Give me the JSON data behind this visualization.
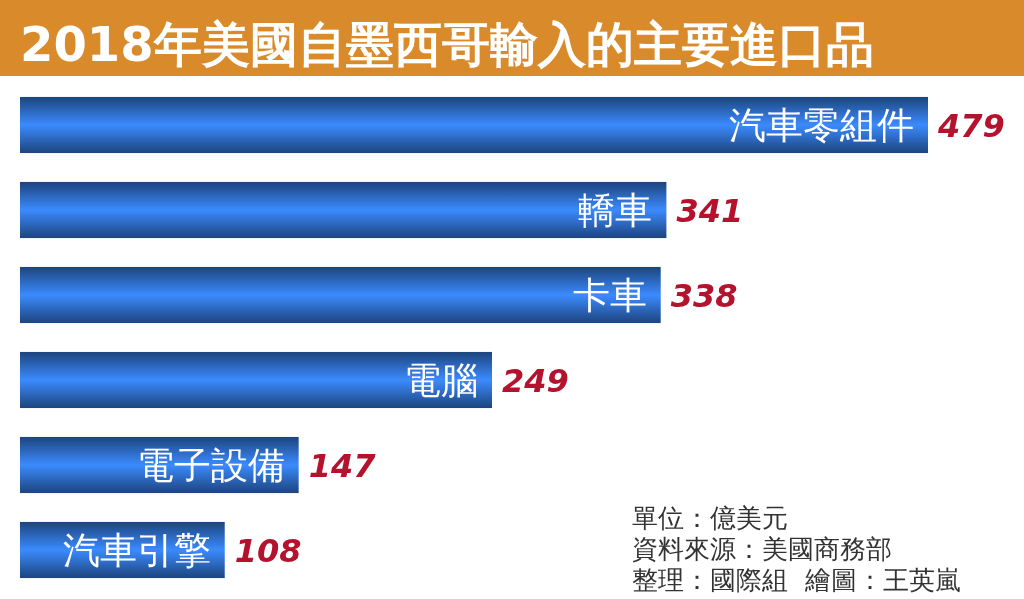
{
  "chart_data": {
    "type": "bar",
    "orientation": "horizontal",
    "title": "2018年美國自墨西哥輸入的主要進口品",
    "categories": [
      "汽車零組件",
      "轎車",
      "卡車",
      "電腦",
      "電子設備",
      "汽車引擎"
    ],
    "values": [
      479,
      341,
      338,
      249,
      147,
      108
    ],
    "color": "#2e6cc6",
    "data_labels": true,
    "tick_labels": "y",
    "annotations": [
      "單位：億美元",
      "資料來源：美國商務部",
      "整理：國際組  繪圖：王英嵐"
    ]
  }
}
